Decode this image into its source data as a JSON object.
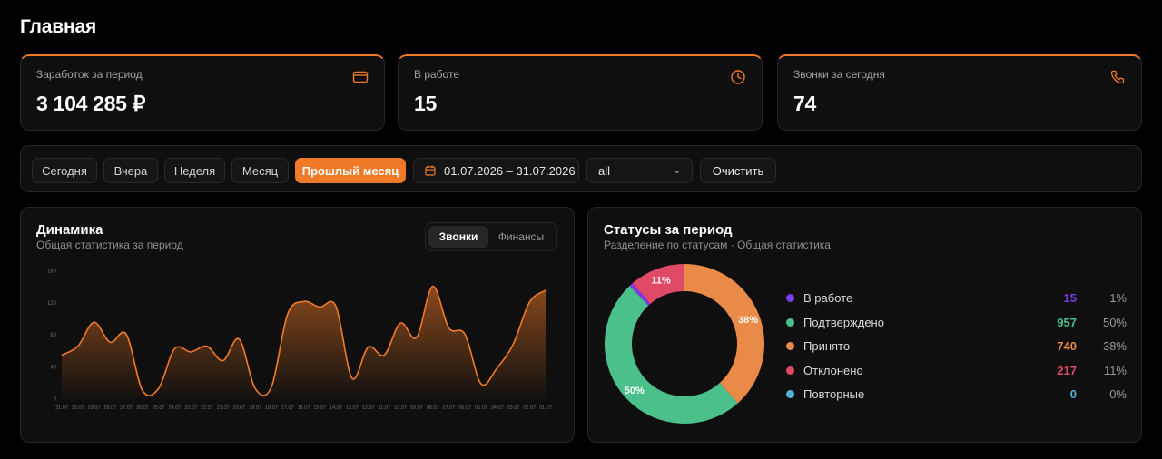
{
  "page": {
    "title": "Главная"
  },
  "stats": [
    {
      "label": "Заработок за период",
      "value": "3 104 285 ₽",
      "icon": "card-icon"
    },
    {
      "label": "В работе",
      "value": "15",
      "icon": "clock-icon"
    },
    {
      "label": "Звонки за сегодня",
      "value": "74",
      "icon": "phone-icon"
    }
  ],
  "filters": {
    "periods": [
      "Сегодня",
      "Вчера",
      "Неделя",
      "Месяц",
      "Прошлый месяц"
    ],
    "active_period": "Прошлый месяц",
    "date_range": "01.07.2026 – 31.07.2026",
    "select_value": "all",
    "clear_label": "Очистить"
  },
  "dynamics": {
    "title": "Динамика",
    "subtitle": "Общая статистика за период",
    "tabs": [
      "Звонки",
      "Финансы"
    ],
    "active_tab": "Звонки"
  },
  "statuses": {
    "title": "Статусы за период",
    "subtitle": "Разделение по статусам · Общая статистика",
    "items": [
      {
        "name": "В работе",
        "count": "15",
        "percent": "1%",
        "color": "#7c3aed"
      },
      {
        "name": "Подтверждено",
        "count": "957",
        "percent": "50%",
        "color": "#4cc08a"
      },
      {
        "name": "Принято",
        "count": "740",
        "percent": "38%",
        "color": "#ea8a48"
      },
      {
        "name": "Отклонено",
        "count": "217",
        "percent": "11%",
        "color": "#e04a67"
      },
      {
        "name": "Повторные",
        "count": "0",
        "percent": "0%",
        "color": "#4fb4d8"
      }
    ]
  },
  "colors": {
    "accent": "#f07a28",
    "panel": "#0f0f0f",
    "border": "#262626"
  },
  "chart_data": [
    {
      "type": "area",
      "ylim": [
        0,
        160
      ],
      "yticks": [
        "160",
        "120",
        "80",
        "40",
        "0"
      ],
      "x": [
        "31.07",
        "30.07",
        "29.07",
        "28.07",
        "27.07",
        "26.07",
        "25.07",
        "24.07",
        "23.07",
        "22.07",
        "21.07",
        "20.07",
        "19.07",
        "18.07",
        "17.07",
        "16.07",
        "15.07",
        "14.07",
        "13.07",
        "12.07",
        "11.07",
        "10.07",
        "09.07",
        "08.07",
        "07.07",
        "06.07",
        "05.07",
        "04.07",
        "03.07",
        "02.07",
        "01.07"
      ],
      "series": [
        {
          "values": [
            54,
            65,
            95,
            70,
            80,
            10,
            12,
            62,
            58,
            65,
            47,
            74,
            12,
            14,
            105,
            121,
            114,
            115,
            25,
            64,
            54,
            94,
            76,
            140,
            88,
            80,
            18,
            38,
            68,
            120,
            135
          ]
        }
      ],
      "color": "#f07a28"
    },
    {
      "type": "pie",
      "categories": [
        "В работе",
        "Подтверждено",
        "Принято",
        "Отклонено",
        "Повторные"
      ],
      "values": [
        15,
        957,
        740,
        217,
        0
      ],
      "data_labels": [
        "",
        "50%",
        "38%",
        "11%",
        ""
      ]
    }
  ]
}
